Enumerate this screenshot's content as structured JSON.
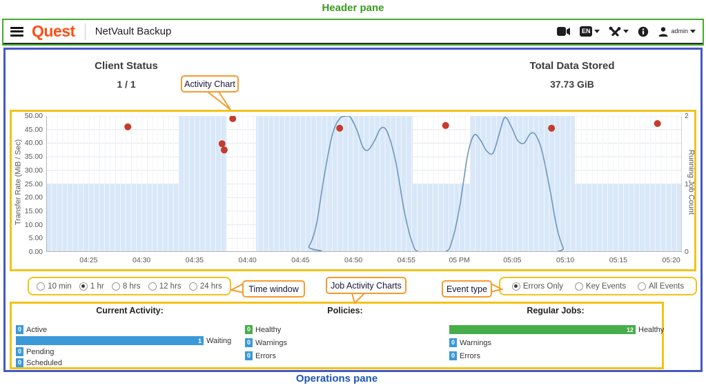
{
  "annotations": {
    "header_pane": "Header pane",
    "operations_pane": "Operations pane",
    "activity_chart": "Activity Chart",
    "time_window": "Time window",
    "job_activity_charts": "Job Activity Charts",
    "event_type": "Event type"
  },
  "header": {
    "logo": "Quest",
    "app_title": "NetVault Backup",
    "language": "EN",
    "user": "admin",
    "colors": {
      "logo_orange": "#fb4f14",
      "icon_dark": "#1e1e1e"
    }
  },
  "summary": {
    "client_status_label": "Client Status",
    "client_status_value": "1 / 1",
    "total_data_label": "Total Data Stored",
    "total_data_value": "37.73 GiB"
  },
  "time_window": {
    "options": [
      {
        "label": "10 min",
        "selected": false
      },
      {
        "label": "1 hr",
        "selected": true
      },
      {
        "label": "8 hrs",
        "selected": false
      },
      {
        "label": "12 hrs",
        "selected": false
      },
      {
        "label": "24 hrs",
        "selected": false
      }
    ]
  },
  "event_type": {
    "options": [
      {
        "label": "Errors Only",
        "selected": true
      },
      {
        "label": "Key Events",
        "selected": false
      },
      {
        "label": "All Events",
        "selected": false
      }
    ]
  },
  "chart_data": {
    "type": "line",
    "title": "Activity Chart",
    "x_axis": {
      "unit": "time of day (minutes after 04:00)",
      "domain_minutes": [
        21,
        81
      ],
      "tick_minutes": [
        25,
        30,
        35,
        40,
        45,
        50,
        55,
        60,
        65,
        70,
        75,
        80
      ],
      "tick_labels": [
        "04:25",
        "04:30",
        "04:35",
        "04:40",
        "04:45",
        "04:50",
        "04:55",
        "05 PM",
        "05:05",
        "05:10",
        "05:15",
        "05:20"
      ]
    },
    "y_left": {
      "label": "Transfer Rate (MiB / Sec)",
      "min": 0,
      "max": 50,
      "tick_step": 5
    },
    "y_right": {
      "label": "Running Job Count",
      "min": 0,
      "max": 2,
      "ticks": [
        2,
        1,
        0
      ]
    },
    "grid": true,
    "legend": false,
    "series": [
      {
        "name": "Transfer Rate (MiB / Sec)",
        "type": "line",
        "color": "#6f94bd",
        "points": [
          [
            21,
            0
          ],
          [
            45,
            0
          ],
          [
            45.8,
            2
          ],
          [
            46.5,
            10
          ],
          [
            47.2,
            27
          ],
          [
            48,
            43
          ],
          [
            48.8,
            49.5
          ],
          [
            49.6,
            50
          ],
          [
            50.3,
            45
          ],
          [
            50.9,
            38.5
          ],
          [
            51.4,
            37.5
          ],
          [
            52,
            41
          ],
          [
            52.6,
            45.5
          ],
          [
            53.2,
            44
          ],
          [
            54,
            33
          ],
          [
            54.8,
            15
          ],
          [
            55.5,
            4
          ],
          [
            56.2,
            0
          ],
          [
            58.6,
            0
          ],
          [
            59.3,
            4
          ],
          [
            60,
            16
          ],
          [
            60.8,
            36
          ],
          [
            61.4,
            43
          ],
          [
            62,
            41
          ],
          [
            62.6,
            37
          ],
          [
            63.2,
            36.5
          ],
          [
            63.8,
            44
          ],
          [
            64.3,
            49.5
          ],
          [
            64.9,
            46
          ],
          [
            65.5,
            41
          ],
          [
            66.1,
            40
          ],
          [
            66.7,
            43.5
          ],
          [
            67.2,
            43
          ],
          [
            67.8,
            37
          ],
          [
            68.5,
            24
          ],
          [
            69.2,
            9
          ],
          [
            69.8,
            1.5
          ],
          [
            70.2,
            0
          ],
          [
            81,
            0
          ]
        ]
      },
      {
        "name": "Running Job Count",
        "type": "steparea",
        "color": "#d9e8f8",
        "segments": [
          [
            21,
            33.5,
            1
          ],
          [
            33.5,
            38,
            2
          ],
          [
            38,
            40.8,
            0
          ],
          [
            40.8,
            55.6,
            2
          ],
          [
            55.6,
            61,
            1
          ],
          [
            61,
            70.9,
            2
          ],
          [
            70.9,
            81,
            1
          ]
        ]
      },
      {
        "name": "Error Events",
        "type": "scatter",
        "color": "#c43c2c",
        "points": [
          [
            28.7,
            46
          ],
          [
            37.6,
            39.8
          ],
          [
            37.8,
            37.5
          ],
          [
            38.6,
            49
          ],
          [
            48.7,
            45.5
          ],
          [
            58.7,
            46.5
          ],
          [
            68.7,
            45.5
          ],
          [
            78.7,
            47.2
          ]
        ]
      }
    ]
  },
  "operations": {
    "current_activity": {
      "title": "Current Activity:",
      "rows": [
        {
          "label": "Active",
          "value": 0,
          "color": "#3b99d8",
          "bar": false
        },
        {
          "label": "Waiting",
          "value": 1,
          "color": "#3b99d8",
          "bar": true
        },
        {
          "label": "Pending",
          "value": 0,
          "color": "#3b99d8",
          "bar": false
        },
        {
          "label": "Scheduled",
          "value": 0,
          "color": "#3b99d8",
          "bar": false
        }
      ]
    },
    "policies": {
      "title": "Policies:",
      "rows": [
        {
          "label": "Healthy",
          "value": 0,
          "color": "#46ad4a",
          "bar": false
        },
        {
          "label": "Warnings",
          "value": 0,
          "color": "#3b99d8",
          "bar": false
        },
        {
          "label": "Errors",
          "value": 0,
          "color": "#3b99d8",
          "bar": false
        }
      ]
    },
    "regular_jobs": {
      "title": "Regular Jobs:",
      "rows": [
        {
          "label": "Healthy",
          "value": 12,
          "color": "#46ad4a",
          "bar": true
        },
        {
          "label": "Warnings",
          "value": 0,
          "color": "#3b99d8",
          "bar": false
        },
        {
          "label": "Errors",
          "value": 0,
          "color": "#3b99d8",
          "bar": false
        }
      ]
    }
  }
}
